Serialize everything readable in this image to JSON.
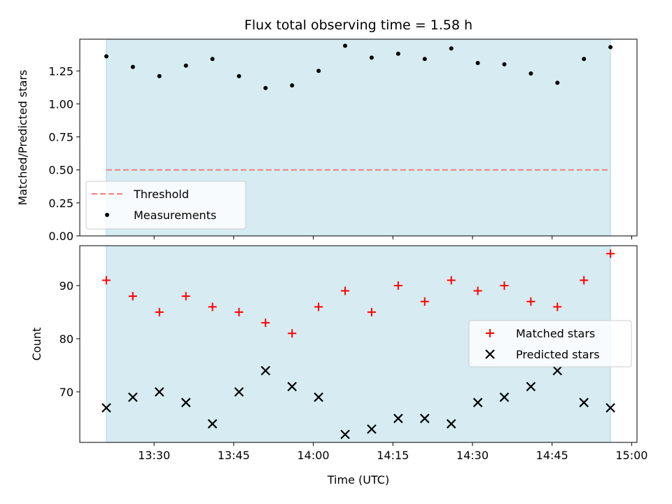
{
  "title": "Flux total observing time = 1.58 h",
  "colors": {
    "shade": "#add8e6",
    "threshold": "#f08080",
    "measurement": "#000000",
    "matched": "#ff0000",
    "predicted": "#000000"
  },
  "chart_data": [
    {
      "type": "scatter",
      "panel": "top",
      "ylabel": "Matched/Predicted stars",
      "xlim": [
        "13:16",
        "15:01"
      ],
      "ylim": [
        0,
        1.49
      ],
      "yticks": [
        0.0,
        0.25,
        0.5,
        0.75,
        1.0,
        1.25
      ],
      "ytick_labels": [
        "0.00",
        "0.25",
        "0.50",
        "0.75",
        "1.00",
        "1.25"
      ],
      "shaded_span": [
        "13:21",
        "14:56"
      ],
      "threshold": {
        "name": "Threshold",
        "value": 0.5
      },
      "legend": {
        "placement": "lower-left",
        "entries": [
          "Threshold",
          "Measurements"
        ]
      },
      "series": [
        {
          "name": "Measurements",
          "marker": "dot",
          "x": [
            "13:21",
            "13:26",
            "13:31",
            "13:36",
            "13:41",
            "13:46",
            "13:51",
            "13:56",
            "14:01",
            "14:06",
            "14:11",
            "14:16",
            "14:21",
            "14:26",
            "14:31",
            "14:36",
            "14:41",
            "14:46",
            "14:51",
            "14:56"
          ],
          "y": [
            1.36,
            1.28,
            1.21,
            1.29,
            1.34,
            1.21,
            1.12,
            1.14,
            1.25,
            1.44,
            1.35,
            1.38,
            1.34,
            1.42,
            1.31,
            1.3,
            1.23,
            1.16,
            1.34,
            1.43
          ]
        }
      ]
    },
    {
      "type": "scatter",
      "panel": "bottom",
      "xlabel": "Time (UTC)",
      "ylabel": "Count",
      "xlim": [
        "13:16",
        "15:01"
      ],
      "ylim": [
        60.5,
        97.5
      ],
      "yticks": [
        70,
        80,
        90
      ],
      "ytick_labels": [
        "70",
        "80",
        "90"
      ],
      "xticks": [
        "13:30",
        "13:45",
        "14:00",
        "14:15",
        "14:30",
        "14:45",
        "15:00"
      ],
      "xtick_labels": [
        "13:30",
        "13:45",
        "14:00",
        "14:15",
        "14:30",
        "14:45",
        "15:00"
      ],
      "shaded_span": [
        "13:21",
        "14:56"
      ],
      "legend": {
        "placement": "center-right",
        "entries": [
          "Matched stars",
          "Predicted stars"
        ]
      },
      "x": [
        "13:21",
        "13:26",
        "13:31",
        "13:36",
        "13:41",
        "13:46",
        "13:51",
        "13:56",
        "14:01",
        "14:06",
        "14:11",
        "14:16",
        "14:21",
        "14:26",
        "14:31",
        "14:36",
        "14:41",
        "14:46",
        "14:51",
        "14:56"
      ],
      "series": [
        {
          "name": "Matched stars",
          "marker": "plus",
          "values": [
            91,
            88,
            85,
            88,
            86,
            85,
            83,
            81,
            86,
            89,
            85,
            90,
            87,
            91,
            89,
            90,
            87,
            86,
            91,
            96
          ]
        },
        {
          "name": "Predicted stars",
          "marker": "x",
          "values": [
            67,
            69,
            70,
            68,
            64,
            70,
            74,
            71,
            69,
            62,
            63,
            65,
            65,
            64,
            68,
            69,
            71,
            74,
            68,
            67
          ]
        }
      ]
    }
  ]
}
